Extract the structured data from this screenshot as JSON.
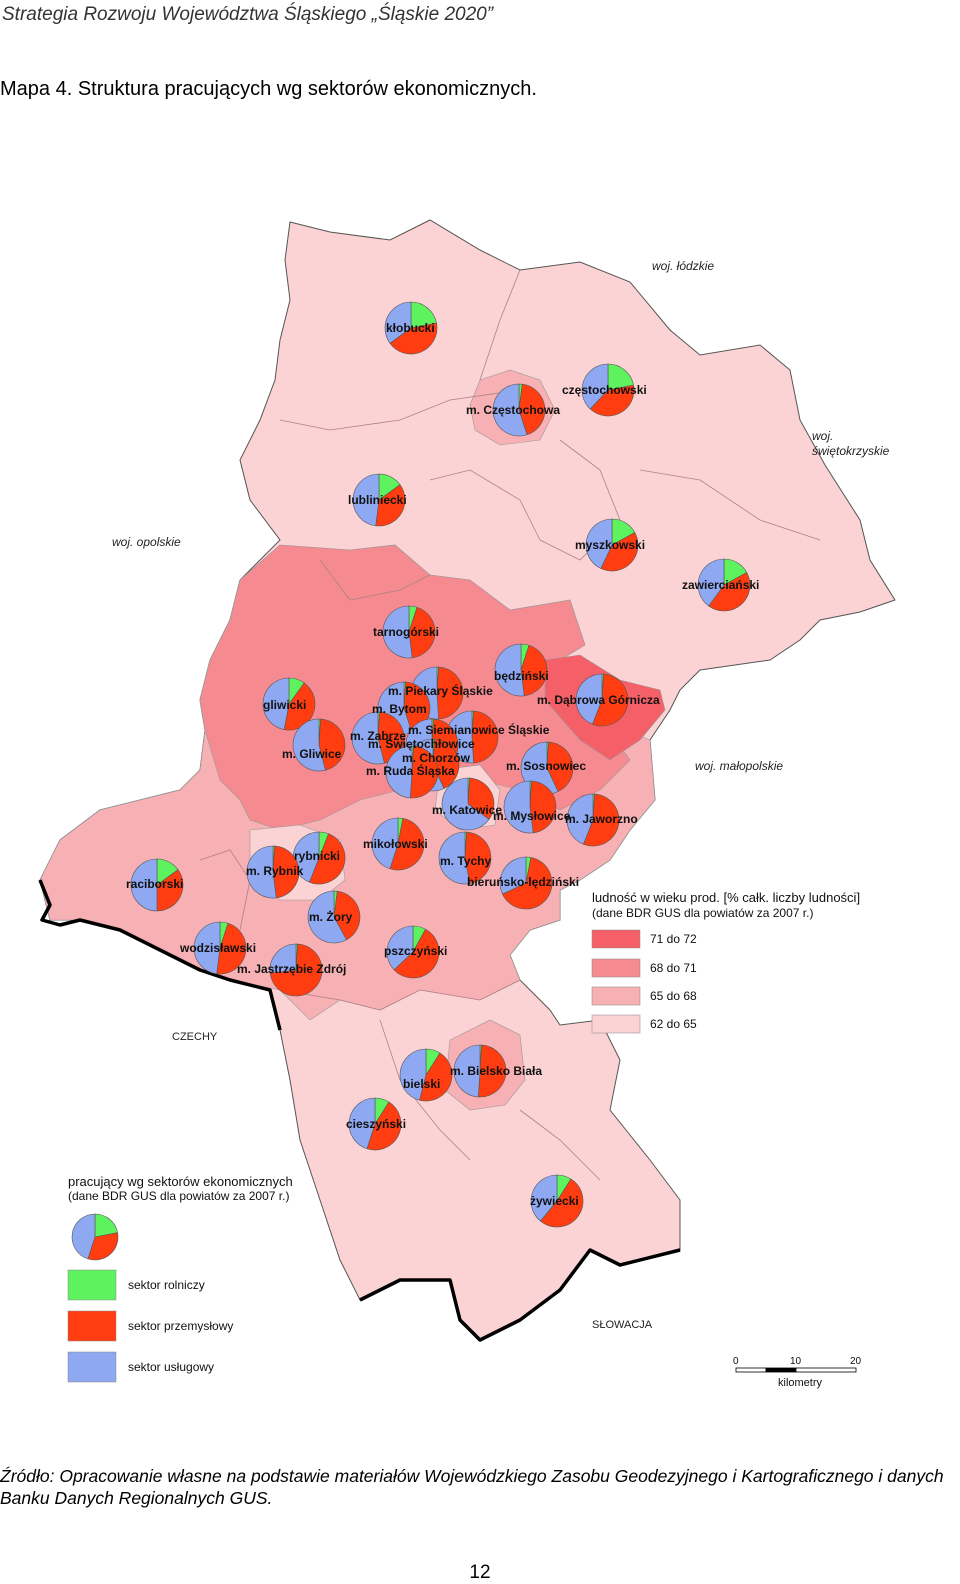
{
  "header": {
    "running_title": "Strategia Rozwoju Województwa Śląskiego „Śląskie 2020”"
  },
  "caption": "Mapa 4. Struktura pracujących wg sektorów ekonomicznych.",
  "colors": {
    "agriculture": "#5EF25E",
    "industry": "#FF3D10",
    "services": "#8EA8F2",
    "class_71_72": "#F45F68",
    "class_68_71": "#F58A90",
    "class_65_68": "#F7B0B4",
    "class_62_65": "#FBD3D5"
  },
  "neighbors": {
    "lodzkie": "woj. łódzkie",
    "swietokrzyskie_1": "woj.",
    "swietokrzyskie_2": "świętokrzyskie",
    "opolskie": "woj. opolskie",
    "malopolskie": "woj. małopolskie",
    "czechy": "CZECHY",
    "slowacja": "SŁOWACJA"
  },
  "legend_population": {
    "title": "ludność w wieku prod. [% całk. liczby ludności]",
    "subtitle": "(dane BDR GUS dla powiatów za 2007 r.)",
    "classes": [
      "71 do 72",
      "68 do 71",
      "65 do 68",
      "62 do 65"
    ]
  },
  "legend_sectors": {
    "title": "pracujący wg sektorów ekonomicznych",
    "subtitle": "(dane BDR GUS dla powiatów za 2007 r.)",
    "items": [
      "sektor rolniczy",
      "sektor przemysłowy",
      "sektor usługowy"
    ]
  },
  "scale": {
    "ticks": [
      "0",
      "10",
      "20"
    ],
    "unit": "kilometry"
  },
  "districts": [
    {
      "name": "kłobucki",
      "agri": 0.22,
      "ind": 0.43,
      "serv": 0.35
    },
    {
      "name": "częstochowski",
      "agri": 0.22,
      "ind": 0.4,
      "serv": 0.38
    },
    {
      "name": "m. Częstochowa",
      "agri": 0.02,
      "ind": 0.43,
      "serv": 0.55
    },
    {
      "name": "lubliniecki",
      "agri": 0.15,
      "ind": 0.37,
      "serv": 0.48
    },
    {
      "name": "myszkowski",
      "agri": 0.17,
      "ind": 0.4,
      "serv": 0.43
    },
    {
      "name": "zawierciański",
      "agri": 0.17,
      "ind": 0.43,
      "serv": 0.4
    },
    {
      "name": "tarnogórski",
      "agri": 0.05,
      "ind": 0.43,
      "serv": 0.52
    },
    {
      "name": "będziński",
      "agri": 0.05,
      "ind": 0.43,
      "serv": 0.52
    },
    {
      "name": "gliwicki",
      "agri": 0.1,
      "ind": 0.43,
      "serv": 0.47
    },
    {
      "name": "m. Gliwice",
      "agri": 0.01,
      "ind": 0.45,
      "serv": 0.54
    },
    {
      "name": "m. Piekary Śląskie",
      "agri": 0.01,
      "ind": 0.48,
      "serv": 0.51
    },
    {
      "name": "m. Bytom",
      "agri": 0.01,
      "ind": 0.44,
      "serv": 0.55
    },
    {
      "name": "m. Zabrze",
      "agri": 0.01,
      "ind": 0.45,
      "serv": 0.54
    },
    {
      "name": "m. Siemianowice Śląskie",
      "agri": 0.01,
      "ind": 0.48,
      "serv": 0.51
    },
    {
      "name": "m. Świętochłowice",
      "agri": 0.01,
      "ind": 0.48,
      "serv": 0.51
    },
    {
      "name": "m. Chorzów",
      "agri": 0.01,
      "ind": 0.42,
      "serv": 0.57
    },
    {
      "name": "m. Ruda Śląska",
      "agri": 0.01,
      "ind": 0.5,
      "serv": 0.49
    },
    {
      "name": "m. Dąbrowa Górnicza",
      "agri": 0.01,
      "ind": 0.55,
      "serv": 0.44
    },
    {
      "name": "m. Sosnowiec",
      "agri": 0.01,
      "ind": 0.42,
      "serv": 0.57
    },
    {
      "name": "m. Katowice",
      "agri": 0.01,
      "ind": 0.34,
      "serv": 0.65
    },
    {
      "name": "m. Mysłowice",
      "agri": 0.01,
      "ind": 0.47,
      "serv": 0.52
    },
    {
      "name": "m. Jaworzno",
      "agri": 0.01,
      "ind": 0.55,
      "serv": 0.44
    },
    {
      "name": "mikołowski",
      "agri": 0.03,
      "ind": 0.52,
      "serv": 0.45
    },
    {
      "name": "m. Tychy",
      "agri": 0.01,
      "ind": 0.46,
      "serv": 0.53
    },
    {
      "name": "bieruńsko-lędziński",
      "agri": 0.03,
      "ind": 0.65,
      "serv": 0.32
    },
    {
      "name": "rybnicki",
      "agri": 0.06,
      "ind": 0.5,
      "serv": 0.44
    },
    {
      "name": "m. Rybnik",
      "agri": 0.01,
      "ind": 0.47,
      "serv": 0.52
    },
    {
      "name": "raciborski",
      "agri": 0.15,
      "ind": 0.35,
      "serv": 0.5
    },
    {
      "name": "m. Żory",
      "agri": 0.02,
      "ind": 0.4,
      "serv": 0.58
    },
    {
      "name": "wodzisławski",
      "agri": 0.05,
      "ind": 0.47,
      "serv": 0.48
    },
    {
      "name": "m. Jastrzębie Zdrój",
      "agri": 0.01,
      "ind": 0.72,
      "serv": 0.27
    },
    {
      "name": "pszczyński",
      "agri": 0.08,
      "ind": 0.55,
      "serv": 0.37
    },
    {
      "name": "bielski",
      "agri": 0.09,
      "ind": 0.45,
      "serv": 0.46
    },
    {
      "name": "m. Bielsko Biała",
      "agri": 0.01,
      "ind": 0.5,
      "serv": 0.49
    },
    {
      "name": "cieszyński",
      "agri": 0.09,
      "ind": 0.46,
      "serv": 0.45
    },
    {
      "name": "żywiecki",
      "agri": 0.09,
      "ind": 0.52,
      "serv": 0.39
    }
  ],
  "source": "Źródło: Opracowanie własne na podstawie materiałów Wojewódzkiego Zasobu Geodezyjnego i Kartograficznego i danych Banku Danych Regionalnych GUS.",
  "page_number": "12"
}
